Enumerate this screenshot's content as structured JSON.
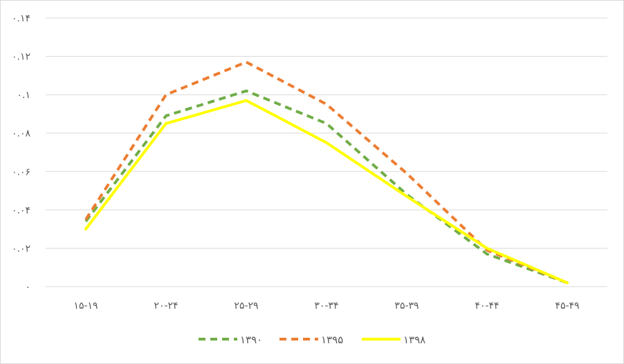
{
  "chart_data": {
    "type": "line",
    "title": "",
    "xlabel": "",
    "ylabel": "",
    "categories": [
      "15-19",
      "20-24",
      "25-29",
      "30-34",
      "35-39",
      "40-44",
      "45-49"
    ],
    "category_labels": [
      "۱۵-۱۹",
      "۲۰-۲۴",
      "۲۵-۲۹",
      "۳۰-۳۴",
      "۳۵-۳۹",
      "۴۰-۴۴",
      "۴۵-۴۹"
    ],
    "ylim": [
      0,
      0.14
    ],
    "yticks": [
      0,
      0.02,
      0.04,
      0.06,
      0.08,
      0.1,
      0.12,
      0.14
    ],
    "ytick_labels": [
      "۰",
      "۰.۰۲",
      "۰.۰۴",
      "۰.۰۶",
      "۰.۰۸",
      "۰.۱",
      "۰.۱۲",
      "۰.۱۴"
    ],
    "grid": true,
    "legend_position": "bottom",
    "series": [
      {
        "name": "۱۳۹۰",
        "values": [
          0.034,
          0.089,
          0.102,
          0.085,
          0.048,
          0.017,
          0.002
        ],
        "color": "#70ad47",
        "style": "dashed"
      },
      {
        "name": "۱۳۹۵",
        "values": [
          0.035,
          0.1,
          0.117,
          0.095,
          0.059,
          0.019,
          0.002
        ],
        "color": "#ed7d31",
        "style": "dashed"
      },
      {
        "name": "۱۳۹۸",
        "values": [
          0.03,
          0.085,
          0.097,
          0.075,
          0.047,
          0.02,
          0.002
        ],
        "color": "#ffff00",
        "style": "solid"
      }
    ]
  }
}
